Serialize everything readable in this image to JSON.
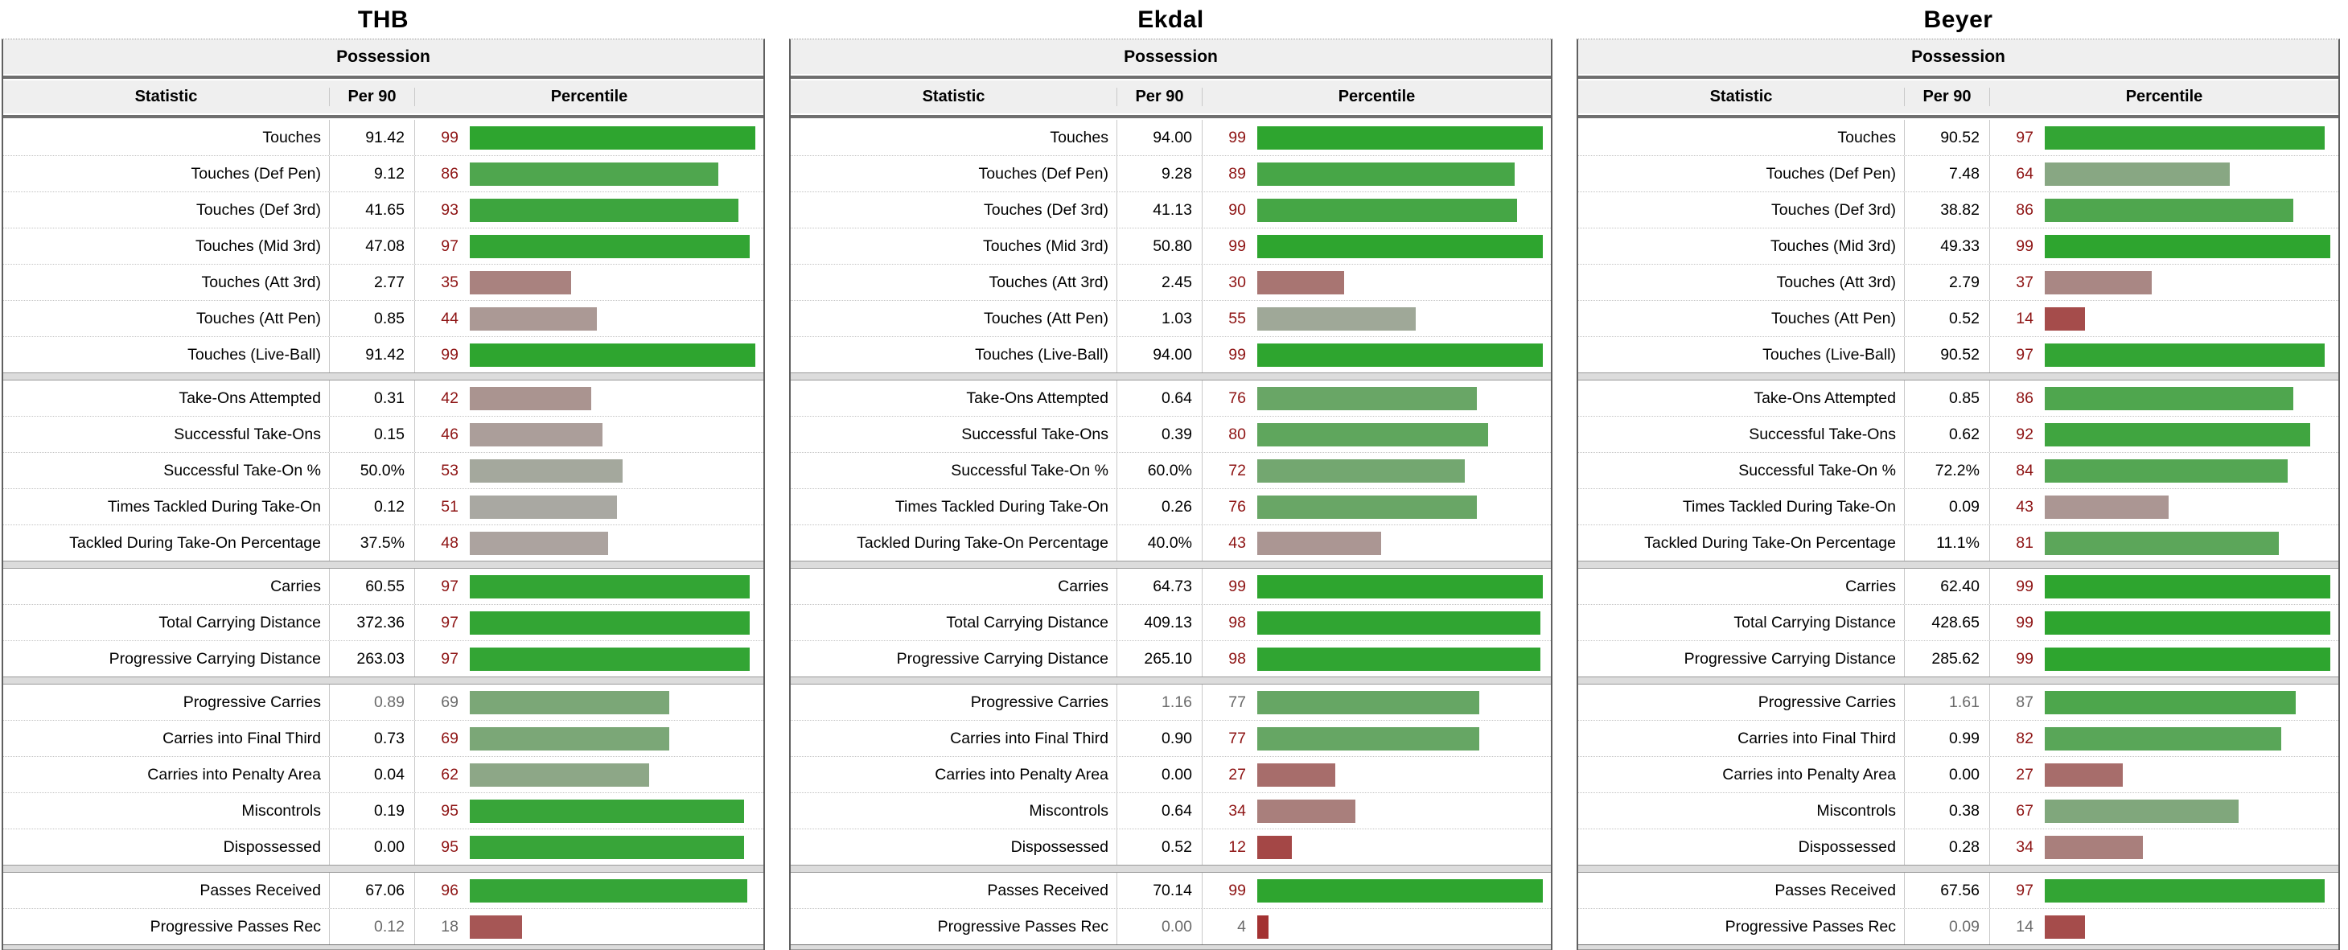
{
  "style": {
    "bar_low": "#a22828",
    "bar_mid": "#aca8a4",
    "bar_high": "#2ba52d",
    "pct_text_color": "#8e1414",
    "muted_text_color": "#6a6a6a",
    "value_text_color": "#000000"
  },
  "chart_data": [
    {
      "type": "bar",
      "title": "THB",
      "section": "Possession",
      "columns": [
        "Statistic",
        "Per 90",
        "Percentile"
      ],
      "xlim": [
        0,
        100
      ],
      "groups": [
        {
          "rows": [
            {
              "stat": "Touches",
              "per90": "91.42",
              "pct": 99,
              "muted": false
            },
            {
              "stat": "Touches (Def Pen)",
              "per90": "9.12",
              "pct": 86,
              "muted": false
            },
            {
              "stat": "Touches (Def 3rd)",
              "per90": "41.65",
              "pct": 93,
              "muted": false
            },
            {
              "stat": "Touches (Mid 3rd)",
              "per90": "47.08",
              "pct": 97,
              "muted": false
            },
            {
              "stat": "Touches (Att 3rd)",
              "per90": "2.77",
              "pct": 35,
              "muted": false
            },
            {
              "stat": "Touches (Att Pen)",
              "per90": "0.85",
              "pct": 44,
              "muted": false
            },
            {
              "stat": "Touches (Live-Ball)",
              "per90": "91.42",
              "pct": 99,
              "muted": false
            }
          ]
        },
        {
          "rows": [
            {
              "stat": "Take-Ons Attempted",
              "per90": "0.31",
              "pct": 42,
              "muted": false
            },
            {
              "stat": "Successful Take-Ons",
              "per90": "0.15",
              "pct": 46,
              "muted": false
            },
            {
              "stat": "Successful Take-On %",
              "per90": "50.0%",
              "pct": 53,
              "muted": false
            },
            {
              "stat": "Times Tackled During Take-On",
              "per90": "0.12",
              "pct": 51,
              "muted": false
            },
            {
              "stat": "Tackled During Take-On Percentage",
              "per90": "37.5%",
              "pct": 48,
              "muted": false
            }
          ]
        },
        {
          "rows": [
            {
              "stat": "Carries",
              "per90": "60.55",
              "pct": 97,
              "muted": false
            },
            {
              "stat": "Total Carrying Distance",
              "per90": "372.36",
              "pct": 97,
              "muted": false
            },
            {
              "stat": "Progressive Carrying Distance",
              "per90": "263.03",
              "pct": 97,
              "muted": false
            }
          ]
        },
        {
          "rows": [
            {
              "stat": "Progressive Carries",
              "per90": "0.89",
              "pct": 69,
              "muted": true
            },
            {
              "stat": "Carries into Final Third",
              "per90": "0.73",
              "pct": 69,
              "muted": false
            },
            {
              "stat": "Carries into Penalty Area",
              "per90": "0.04",
              "pct": 62,
              "muted": false
            },
            {
              "stat": "Miscontrols",
              "per90": "0.19",
              "pct": 95,
              "muted": false
            },
            {
              "stat": "Dispossessed",
              "per90": "0.00",
              "pct": 95,
              "muted": false
            }
          ]
        },
        {
          "rows": [
            {
              "stat": "Passes Received",
              "per90": "67.06",
              "pct": 96,
              "muted": false
            },
            {
              "stat": "Progressive Passes Rec",
              "per90": "0.12",
              "pct": 18,
              "muted": true
            }
          ]
        }
      ]
    },
    {
      "type": "bar",
      "title": "Ekdal",
      "section": "Possession",
      "columns": [
        "Statistic",
        "Per 90",
        "Percentile"
      ],
      "xlim": [
        0,
        100
      ],
      "groups": [
        {
          "rows": [
            {
              "stat": "Touches",
              "per90": "94.00",
              "pct": 99,
              "muted": false
            },
            {
              "stat": "Touches (Def Pen)",
              "per90": "9.28",
              "pct": 89,
              "muted": false
            },
            {
              "stat": "Touches (Def 3rd)",
              "per90": "41.13",
              "pct": 90,
              "muted": false
            },
            {
              "stat": "Touches (Mid 3rd)",
              "per90": "50.80",
              "pct": 99,
              "muted": false
            },
            {
              "stat": "Touches (Att 3rd)",
              "per90": "2.45",
              "pct": 30,
              "muted": false
            },
            {
              "stat": "Touches (Att Pen)",
              "per90": "1.03",
              "pct": 55,
              "muted": false
            },
            {
              "stat": "Touches (Live-Ball)",
              "per90": "94.00",
              "pct": 99,
              "muted": false
            }
          ]
        },
        {
          "rows": [
            {
              "stat": "Take-Ons Attempted",
              "per90": "0.64",
              "pct": 76,
              "muted": false
            },
            {
              "stat": "Successful Take-Ons",
              "per90": "0.39",
              "pct": 80,
              "muted": false
            },
            {
              "stat": "Successful Take-On %",
              "per90": "60.0%",
              "pct": 72,
              "muted": false
            },
            {
              "stat": "Times Tackled During Take-On",
              "per90": "0.26",
              "pct": 76,
              "muted": false
            },
            {
              "stat": "Tackled During Take-On Percentage",
              "per90": "40.0%",
              "pct": 43,
              "muted": false
            }
          ]
        },
        {
          "rows": [
            {
              "stat": "Carries",
              "per90": "64.73",
              "pct": 99,
              "muted": false
            },
            {
              "stat": "Total Carrying Distance",
              "per90": "409.13",
              "pct": 98,
              "muted": false
            },
            {
              "stat": "Progressive Carrying Distance",
              "per90": "265.10",
              "pct": 98,
              "muted": false
            }
          ]
        },
        {
          "rows": [
            {
              "stat": "Progressive Carries",
              "per90": "1.16",
              "pct": 77,
              "muted": true
            },
            {
              "stat": "Carries into Final Third",
              "per90": "0.90",
              "pct": 77,
              "muted": false
            },
            {
              "stat": "Carries into Penalty Area",
              "per90": "0.00",
              "pct": 27,
              "muted": false
            },
            {
              "stat": "Miscontrols",
              "per90": "0.64",
              "pct": 34,
              "muted": false
            },
            {
              "stat": "Dispossessed",
              "per90": "0.52",
              "pct": 12,
              "muted": false
            }
          ]
        },
        {
          "rows": [
            {
              "stat": "Passes Received",
              "per90": "70.14",
              "pct": 99,
              "muted": false
            },
            {
              "stat": "Progressive Passes Rec",
              "per90": "0.00",
              "pct": 4,
              "muted": true
            }
          ]
        }
      ]
    },
    {
      "type": "bar",
      "title": "Beyer",
      "section": "Possession",
      "columns": [
        "Statistic",
        "Per 90",
        "Percentile"
      ],
      "xlim": [
        0,
        100
      ],
      "groups": [
        {
          "rows": [
            {
              "stat": "Touches",
              "per90": "90.52",
              "pct": 97,
              "muted": false
            },
            {
              "stat": "Touches (Def Pen)",
              "per90": "7.48",
              "pct": 64,
              "muted": false
            },
            {
              "stat": "Touches (Def 3rd)",
              "per90": "38.82",
              "pct": 86,
              "muted": false
            },
            {
              "stat": "Touches (Mid 3rd)",
              "per90": "49.33",
              "pct": 99,
              "muted": false
            },
            {
              "stat": "Touches (Att 3rd)",
              "per90": "2.79",
              "pct": 37,
              "muted": false
            },
            {
              "stat": "Touches (Att Pen)",
              "per90": "0.52",
              "pct": 14,
              "muted": false
            },
            {
              "stat": "Touches (Live-Ball)",
              "per90": "90.52",
              "pct": 97,
              "muted": false
            }
          ]
        },
        {
          "rows": [
            {
              "stat": "Take-Ons Attempted",
              "per90": "0.85",
              "pct": 86,
              "muted": false
            },
            {
              "stat": "Successful Take-Ons",
              "per90": "0.62",
              "pct": 92,
              "muted": false
            },
            {
              "stat": "Successful Take-On %",
              "per90": "72.2%",
              "pct": 84,
              "muted": false
            },
            {
              "stat": "Times Tackled During Take-On",
              "per90": "0.09",
              "pct": 43,
              "muted": false
            },
            {
              "stat": "Tackled During Take-On Percentage",
              "per90": "11.1%",
              "pct": 81,
              "muted": false
            }
          ]
        },
        {
          "rows": [
            {
              "stat": "Carries",
              "per90": "62.40",
              "pct": 99,
              "muted": false
            },
            {
              "stat": "Total Carrying Distance",
              "per90": "428.65",
              "pct": 99,
              "muted": false
            },
            {
              "stat": "Progressive Carrying Distance",
              "per90": "285.62",
              "pct": 99,
              "muted": false
            }
          ]
        },
        {
          "rows": [
            {
              "stat": "Progressive Carries",
              "per90": "1.61",
              "pct": 87,
              "muted": true
            },
            {
              "stat": "Carries into Final Third",
              "per90": "0.99",
              "pct": 82,
              "muted": false
            },
            {
              "stat": "Carries into Penalty Area",
              "per90": "0.00",
              "pct": 27,
              "muted": false
            },
            {
              "stat": "Miscontrols",
              "per90": "0.38",
              "pct": 67,
              "muted": false
            },
            {
              "stat": "Dispossessed",
              "per90": "0.28",
              "pct": 34,
              "muted": false
            }
          ]
        },
        {
          "rows": [
            {
              "stat": "Passes Received",
              "per90": "67.56",
              "pct": 97,
              "muted": false
            },
            {
              "stat": "Progressive Passes Rec",
              "per90": "0.09",
              "pct": 14,
              "muted": true
            }
          ]
        }
      ]
    }
  ]
}
